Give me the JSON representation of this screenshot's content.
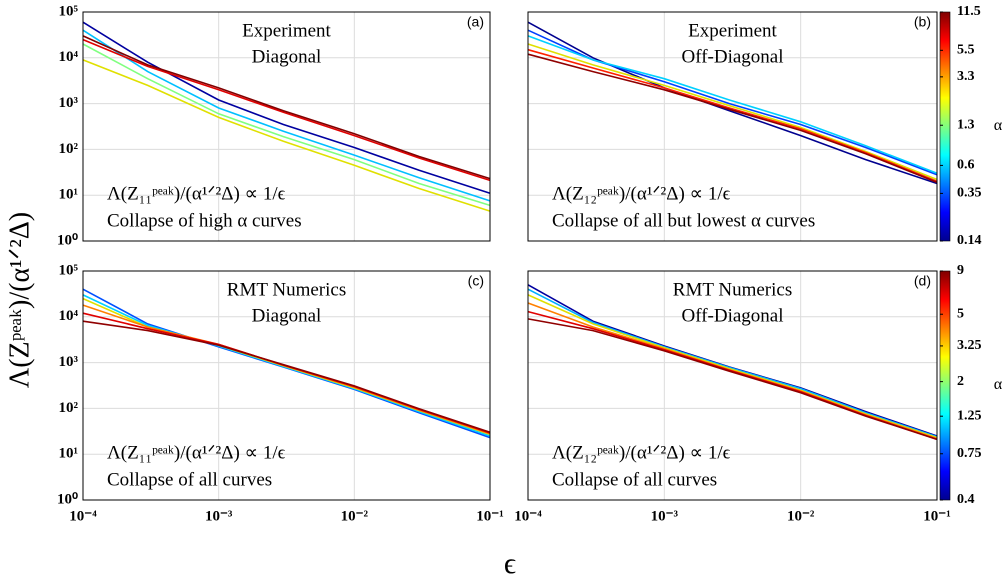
{
  "axes": {
    "ylabel": "Λ(Zᵖᵉᵃᵏ)/(α¹ᐟ²Δ)",
    "xlabel": "ϵ",
    "log": true,
    "grid": true,
    "xlim": [
      0.0001,
      0.1
    ],
    "xticks": [
      {
        "value": 0.0001,
        "label": "10⁻⁴"
      },
      {
        "value": 0.001,
        "label": "10⁻³"
      },
      {
        "value": 0.01,
        "label": "10⁻²"
      },
      {
        "value": 0.1,
        "label": "10⁻¹"
      }
    ],
    "ylim": [
      1,
      100000
    ],
    "yticks": [
      {
        "value": 1,
        "label": "10⁰"
      },
      {
        "value": 10,
        "label": "10¹"
      },
      {
        "value": 100,
        "label": "10²"
      },
      {
        "value": 1000,
        "label": "10³"
      },
      {
        "value": 10000,
        "label": "10⁴"
      },
      {
        "value": 100000,
        "label": "10⁵"
      }
    ]
  },
  "chart_data": [
    {
      "type": "line",
      "panel_label": "(a)",
      "annotations": [
        "Experiment",
        "Diagonal",
        "Λ(Z₁₁ᵖᵉᵃᵏ)/(α¹ᐟ²Δ) ∝ 1/ϵ",
        "Collapse of high α curves"
      ],
      "x": [
        0.0001,
        0.0003,
        0.001,
        0.003,
        0.01,
        0.03,
        0.1
      ],
      "series": [
        {
          "color": "#0000a0",
          "values": [
            60000,
            8000,
            1200,
            350,
            110,
            35,
            11
          ]
        },
        {
          "color": "#00c0ff",
          "values": [
            40000,
            5000,
            800,
            250,
            75,
            24,
            7.5
          ]
        },
        {
          "color": "#80ff80",
          "values": [
            20000,
            3500,
            600,
            190,
            60,
            18,
            6
          ]
        },
        {
          "color": "#e0e000",
          "values": [
            9000,
            2500,
            500,
            150,
            45,
            14,
            4.5
          ]
        },
        {
          "color": "#e00000",
          "values": [
            25000,
            6500,
            2000,
            650,
            200,
            65,
            21
          ]
        },
        {
          "color": "#800000",
          "values": [
            30000,
            7000,
            2200,
            700,
            220,
            70,
            23
          ]
        }
      ]
    },
    {
      "type": "line",
      "panel_label": "(b)",
      "annotations": [
        "Experiment",
        "Off-Diagonal",
        "Λ(Z₁₂ᵖᵉᵃᵏ)/(α¹ᐟ²Δ) ∝ 1/ϵ",
        "Collapse of all but lowest α curves"
      ],
      "x": [
        0.0001,
        0.0003,
        0.001,
        0.003,
        0.01,
        0.03,
        0.1
      ],
      "series": [
        {
          "color": "#00008f",
          "values": [
            60000,
            10000,
            2200,
            700,
            200,
            60,
            18
          ]
        },
        {
          "color": "#0040ff",
          "values": [
            40000,
            9000,
            3000,
            1000,
            350,
            110,
            28
          ]
        },
        {
          "color": "#00d0ff",
          "values": [
            30000,
            9000,
            3500,
            1200,
            400,
            120,
            30
          ]
        },
        {
          "color": "#e0e000",
          "values": [
            20000,
            7000,
            2500,
            900,
            300,
            90,
            22
          ]
        },
        {
          "color": "#ff2000",
          "values": [
            15000,
            6000,
            2200,
            800,
            280,
            85,
            20
          ]
        },
        {
          "color": "#900000",
          "values": [
            12000,
            5000,
            2000,
            750,
            260,
            80,
            19
          ]
        }
      ],
      "colorbar": {
        "label": "α",
        "lim": [
          0.14,
          11.5
        ],
        "ticks": [
          0.14,
          0.35,
          0.6,
          1.3,
          3.3,
          5.5,
          11.5
        ]
      }
    },
    {
      "type": "line",
      "panel_label": "(c)",
      "annotations": [
        "RMT Numerics",
        "Diagonal",
        "Λ(Z₁₁ᵖᵉᵃᵏ)/(α¹ᐟ²Δ) ∝ 1/ϵ",
        "Collapse of all curves"
      ],
      "x": [
        0.0001,
        0.0003,
        0.001,
        0.003,
        0.01,
        0.03,
        0.1
      ],
      "series": [
        {
          "color": "#0050ff",
          "values": [
            40000,
            7000,
            2200,
            800,
            260,
            80,
            23
          ]
        },
        {
          "color": "#00d0ff",
          "values": [
            30000,
            6500,
            2300,
            820,
            270,
            85,
            25
          ]
        },
        {
          "color": "#e0e000",
          "values": [
            25000,
            6000,
            2400,
            850,
            280,
            90,
            27
          ]
        },
        {
          "color": "#ff8000",
          "values": [
            18000,
            6000,
            2500,
            870,
            290,
            92,
            28
          ]
        },
        {
          "color": "#e00000",
          "values": [
            12000,
            5500,
            2500,
            880,
            300,
            95,
            29
          ]
        },
        {
          "color": "#900000",
          "values": [
            8000,
            5000,
            2400,
            900,
            310,
            98,
            30
          ]
        }
      ]
    },
    {
      "type": "line",
      "panel_label": "(d)",
      "annotations": [
        "RMT Numerics",
        "Off-Diagonal",
        "Λ(Z₁₂ᵖᵉᵃᵏ)/(α¹ᐟ²Δ) ∝ 1/ϵ",
        "Collapse of all curves"
      ],
      "x": [
        0.0001,
        0.0003,
        0.001,
        0.003,
        0.01,
        0.03,
        0.1
      ],
      "series": [
        {
          "color": "#0000a0",
          "values": [
            50000,
            8000,
            2300,
            800,
            280,
            85,
            25
          ]
        },
        {
          "color": "#00b0ff",
          "values": [
            40000,
            7500,
            2200,
            780,
            270,
            80,
            24
          ]
        },
        {
          "color": "#e0e000",
          "values": [
            30000,
            7000,
            2100,
            740,
            250,
            76,
            23
          ]
        },
        {
          "color": "#ff8000",
          "values": [
            20000,
            6000,
            2000,
            700,
            240,
            73,
            22
          ]
        },
        {
          "color": "#e00000",
          "values": [
            13000,
            5500,
            1900,
            680,
            230,
            70,
            21
          ]
        },
        {
          "color": "#900000",
          "values": [
            9000,
            5000,
            1800,
            650,
            220,
            68,
            21
          ]
        }
      ],
      "colorbar": {
        "label": "α",
        "lim": [
          0.4,
          9
        ],
        "ticks": [
          0.4,
          0.75,
          1.25,
          2,
          3.25,
          5,
          9
        ]
      }
    }
  ]
}
